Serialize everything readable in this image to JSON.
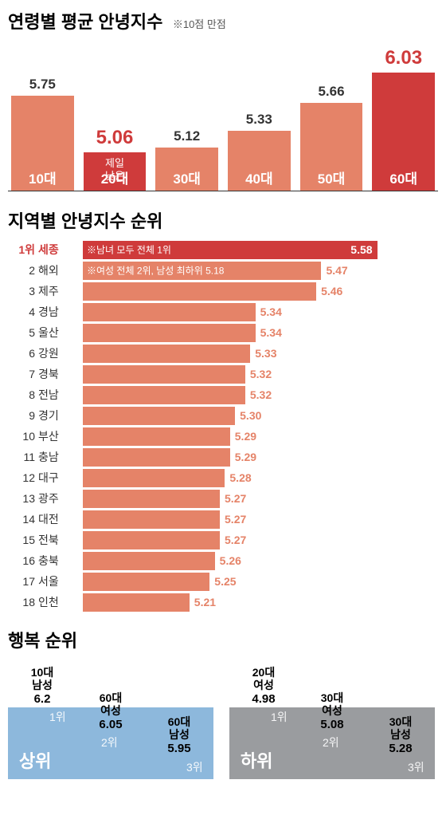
{
  "section1": {
    "title": "연령별 평균 안녕지수",
    "note": "※10점 만점",
    "ymin": 4.6,
    "ymax": 6.1,
    "bar_color": "#e58368",
    "highlight_bar_color": "#cf3b3b",
    "highlight_val_color": "#cf3b3b",
    "categories": [
      "10대",
      "20대",
      "30대",
      "40대",
      "50대",
      "60대"
    ],
    "values": [
      5.75,
      5.06,
      5.12,
      5.33,
      5.66,
      6.03
    ],
    "highlight_idx": [
      1,
      5
    ],
    "annot_idx": 1,
    "annot_text": "제일\n낮은"
  },
  "section2": {
    "title": "지역별 안녕지수 순위",
    "xmin": 5.0,
    "xmax": 5.7,
    "bar_color": "#e58368",
    "highlight_bar_color": "#cf3b3b",
    "highlight_text_color": "#cf3b3b",
    "rows": [
      {
        "rank": "1위",
        "name": "세종",
        "value": 5.58,
        "highlight": true,
        "note": "※남녀 모두 전체 1위"
      },
      {
        "rank": "2",
        "name": "해외",
        "value": 5.47,
        "note": "※여성 전체 2위, 남성 최하위 5.18"
      },
      {
        "rank": "3",
        "name": "제주",
        "value": 5.46
      },
      {
        "rank": "4",
        "name": "경남",
        "value": 5.34
      },
      {
        "rank": "5",
        "name": "울산",
        "value": 5.34
      },
      {
        "rank": "6",
        "name": "강원",
        "value": 5.33
      },
      {
        "rank": "7",
        "name": "경북",
        "value": 5.32
      },
      {
        "rank": "8",
        "name": "전남",
        "value": 5.32
      },
      {
        "rank": "9",
        "name": "경기",
        "value": 5.3
      },
      {
        "rank": "10",
        "name": "부산",
        "value": 5.29
      },
      {
        "rank": "11",
        "name": "충남",
        "value": 5.29
      },
      {
        "rank": "12",
        "name": "대구",
        "value": 5.28
      },
      {
        "rank": "13",
        "name": "광주",
        "value": 5.27
      },
      {
        "rank": "14",
        "name": "대전",
        "value": 5.27
      },
      {
        "rank": "15",
        "name": "전북",
        "value": 5.27
      },
      {
        "rank": "16",
        "name": "충북",
        "value": 5.26
      },
      {
        "rank": "17",
        "name": "서울",
        "value": 5.25
      },
      {
        "rank": "18",
        "name": "인천",
        "value": 5.21
      }
    ]
  },
  "section3": {
    "title": "행복 순위",
    "top": {
      "label": "상위",
      "color": "#8db8dc",
      "step_heights": [
        90,
        58,
        28
      ],
      "steps": [
        {
          "group": "10대\n남성",
          "value": "6.2",
          "rank": "1위"
        },
        {
          "group": "60대\n여성",
          "value": "6.05",
          "rank": "2위"
        },
        {
          "group": "60대\n남성",
          "value": "5.95",
          "rank": "3위"
        }
      ]
    },
    "bottom": {
      "label": "하위",
      "color": "#9a9c9f",
      "step_heights": [
        90,
        58,
        28
      ],
      "steps": [
        {
          "group": "20대\n여성",
          "value": "4.98",
          "rank": "1위"
        },
        {
          "group": "30대\n여성",
          "value": "5.08",
          "rank": "2위"
        },
        {
          "group": "30대\n남성",
          "value": "5.28",
          "rank": "3위"
        }
      ]
    }
  }
}
